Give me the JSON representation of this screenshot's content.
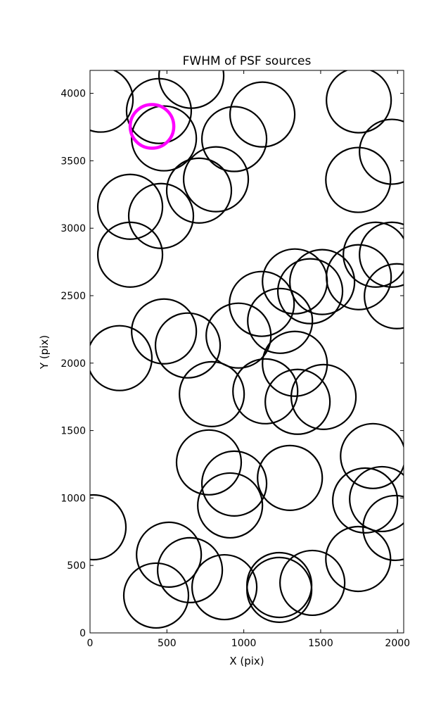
{
  "chart_data": {
    "type": "scatter",
    "title": "FWHM of PSF sources",
    "xlabel": "X (pix)",
    "ylabel": "Y (pix)",
    "xlim": [
      0,
      2040
    ],
    "ylim": [
      0,
      4170
    ],
    "xticks": [
      0,
      500,
      1000,
      1500,
      2000
    ],
    "yticks": [
      0,
      500,
      1000,
      1500,
      2000,
      2500,
      3000,
      3500,
      4000
    ],
    "series": [
      {
        "color": "#000000",
        "x": [
          69,
          448,
          659,
          481,
          938,
          1121,
          1748,
          1963,
          1744,
          819,
          709,
          261,
          462,
          261,
          1858,
          1963,
          1995,
          1748,
          1510,
          1332,
          1432,
          1117,
          1236,
          481,
          636,
          966,
          1332,
          192,
          792,
          1140,
          1350,
          1519,
          773,
          938,
          911,
          1300,
          1840,
          1789,
          1899,
          1986,
          23,
          513,
          650,
          430,
          874,
          1231,
          1231,
          1446,
          1744
        ],
        "y": [
          3953,
          3869,
          4130,
          3666,
          3661,
          3843,
          3948,
          3567,
          3358,
          3363,
          3279,
          3159,
          3091,
          2804,
          2804,
          2804,
          2496,
          2637,
          2601,
          2606,
          2533,
          2439,
          2313,
          2235,
          2131,
          2204,
          1995,
          2037,
          1770,
          1791,
          1713,
          1749,
          1264,
          1107,
          945,
          1149,
          1311,
          982,
          992,
          778,
          783,
          580,
          465,
          277,
          339,
          319,
          355,
          371,
          548
        ]
      },
      {
        "color": "#ff00ff",
        "x": [
          403
        ],
        "y": [
          3755
        ]
      }
    ]
  }
}
